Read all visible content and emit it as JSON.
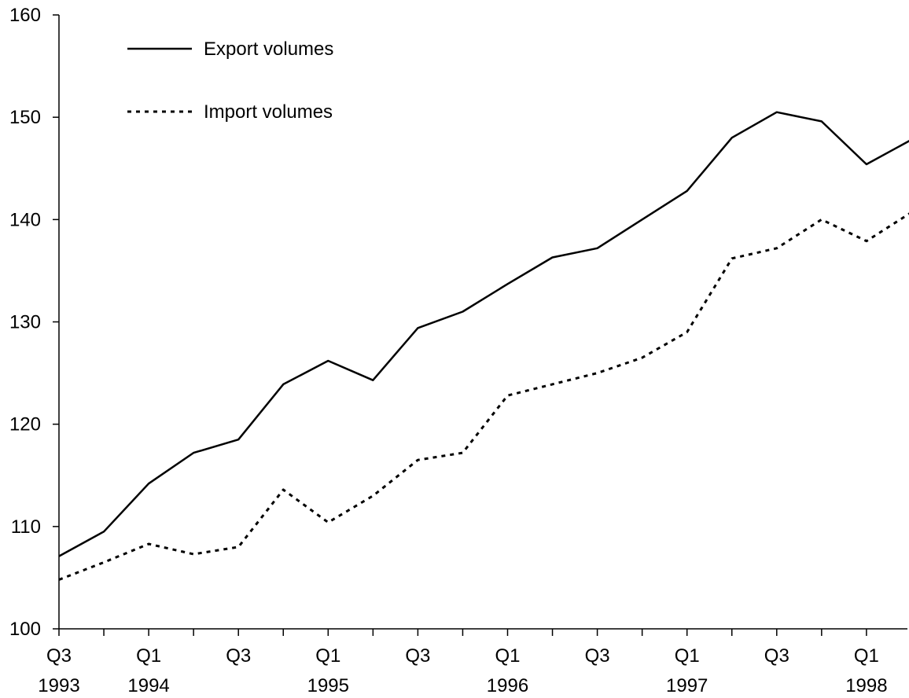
{
  "chart_data": {
    "type": "line",
    "title": "",
    "xlabel": "",
    "ylabel": "",
    "ylim": [
      100,
      160
    ],
    "yticks": [
      100,
      110,
      120,
      130,
      140,
      150,
      160
    ],
    "grid": false,
    "legend_position": "top-left",
    "x": [
      "1993 Q3",
      "1993 Q4",
      "1994 Q1",
      "1994 Q2",
      "1994 Q3",
      "1994 Q4",
      "1995 Q1",
      "1995 Q2",
      "1995 Q3",
      "1995 Q4",
      "1996 Q1",
      "1996 Q2",
      "1996 Q3",
      "1996 Q4",
      "1997 Q1",
      "1997 Q2",
      "1997 Q3",
      "1997 Q4",
      "1998 Q1",
      "1998 Q2"
    ],
    "xtick_labels": [
      {
        "quarter": "Q3",
        "year": "1993"
      },
      {
        "quarter": "Q1",
        "year": "1994"
      },
      {
        "quarter": "Q3",
        "year": ""
      },
      {
        "quarter": "Q1",
        "year": "1995"
      },
      {
        "quarter": "Q3",
        "year": ""
      },
      {
        "quarter": "Q1",
        "year": "1996"
      },
      {
        "quarter": "Q3",
        "year": ""
      },
      {
        "quarter": "Q1",
        "year": "1997"
      },
      {
        "quarter": "Q3",
        "year": ""
      },
      {
        "quarter": "Q1",
        "year": "1998"
      }
    ],
    "series": [
      {
        "name": "Export volumes",
        "style": "solid",
        "color": "#000000",
        "values": [
          107.1,
          109.5,
          114.2,
          117.2,
          118.5,
          123.9,
          126.2,
          124.3,
          129.4,
          131.0,
          133.7,
          136.3,
          137.2,
          140.0,
          142.8,
          148.0,
          150.5,
          149.6,
          145.4,
          147.8
        ]
      },
      {
        "name": "Import volumes",
        "style": "dotted",
        "color": "#000000",
        "values": [
          104.8,
          106.5,
          108.3,
          107.3,
          108.0,
          113.6,
          110.4,
          113.0,
          116.5,
          117.2,
          122.8,
          123.9,
          125.0,
          126.5,
          129.0,
          136.2,
          137.2,
          140.0,
          137.9,
          140.7
        ]
      }
    ]
  }
}
